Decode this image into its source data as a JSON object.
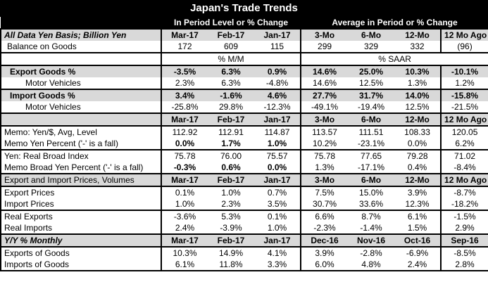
{
  "title": "Japan's Trade Trends",
  "header": {
    "left_group": "In Period Level or % Change",
    "right_group": "Average in Period or % Change"
  },
  "cols": {
    "a": [
      "Mar-17",
      "Feb-17",
      "Jan-17",
      "3-Mo",
      "6-Mo",
      "12-Mo",
      "12 Mo Ago"
    ],
    "b": [
      "Dec-16",
      "Nov-16",
      "Oct-16",
      "Sep-16"
    ]
  },
  "rows": {
    "all_data": "All Data Yen Basis; Billion Yen",
    "balance_label": "Balance on Goods",
    "balance": [
      "172",
      "609",
      "115",
      "299",
      "329",
      "332",
      "(96)"
    ],
    "mm_label": "% M/M",
    "saar_label": "% SAAR",
    "export_label": "Export Goods %",
    "export": [
      "-3.5%",
      "6.3%",
      "0.9%",
      "14.6%",
      "25.0%",
      "10.3%",
      "-10.1%"
    ],
    "mv_label": "Motor Vehicles",
    "export_mv": [
      "2.3%",
      "6.3%",
      "-4.8%",
      "14.6%",
      "12.5%",
      "1.3%",
      "1.2%"
    ],
    "import_label": "Import Goods %",
    "import": [
      "3.4%",
      "-1.6%",
      "4.6%",
      "27.7%",
      "31.7%",
      "14.0%",
      "-15.8%"
    ],
    "import_mv": [
      "-25.8%",
      "29.8%",
      "-12.3%",
      "-49.1%",
      "-19.4%",
      "12.5%",
      "-21.5%"
    ],
    "memo_yen_label": "Memo: Yen/$, Avg, Level",
    "memo_yen": [
      "112.92",
      "112.91",
      "114.87",
      "113.57",
      "111.51",
      "108.33",
      "120.05"
    ],
    "memo_yen_pct_label": "Memo Yen Percent ('-' is a fall)",
    "memo_yen_pct": [
      "0.0%",
      "1.7%",
      "1.0%",
      "10.2%",
      "-23.1%",
      "0.0%",
      "6.2%"
    ],
    "real_broad_label": "Yen: Real Broad Index",
    "real_broad": [
      "75.78",
      "76.00",
      "75.57",
      "75.78",
      "77.65",
      "79.28",
      "71.02"
    ],
    "memo_broad_label": "Memo Broad Yen Percent ('-' is a fall)",
    "memo_broad": [
      "-0.3%",
      "0.6%",
      "0.0%",
      "1.3%",
      "-17.1%",
      "0.4%",
      "-8.4%"
    ],
    "prices_label": "Export and Import Prices, Volumes",
    "export_prices_label": "Export Prices",
    "export_prices": [
      "0.1%",
      "1.0%",
      "0.7%",
      "7.5%",
      "15.0%",
      "3.9%",
      "-8.7%"
    ],
    "import_prices_label": "Import Prices",
    "import_prices": [
      "1.0%",
      "2.3%",
      "3.5%",
      "30.7%",
      "33.6%",
      "12.3%",
      "-18.2%"
    ],
    "real_exports_label": "Real Exports",
    "real_exports": [
      "-3.6%",
      "5.3%",
      "0.1%",
      "6.6%",
      "8.7%",
      "6.1%",
      "-1.5%"
    ],
    "real_imports_label": "Real Imports",
    "real_imports": [
      "2.4%",
      "-3.9%",
      "1.0%",
      "-2.3%",
      "-1.4%",
      "1.5%",
      "2.9%"
    ],
    "yy_label": "Y/Y % Monthly",
    "exports_goods_label": "Exports of Goods",
    "exports_goods": [
      "10.3%",
      "14.9%",
      "4.1%",
      "3.9%",
      "-2.8%",
      "-6.9%",
      "-8.5%"
    ],
    "imports_goods_label": "Imports of Goods",
    "imports_goods": [
      "6.1%",
      "11.8%",
      "3.3%",
      "6.0%",
      "4.8%",
      "2.4%",
      "2.8%"
    ]
  }
}
